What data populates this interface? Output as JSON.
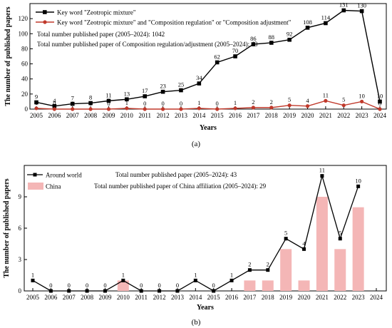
{
  "panels": [
    {
      "caption": "(a)",
      "chart_data": {
        "type": "line",
        "xlabel": "Years",
        "ylabel": "The number of published papers",
        "ylim": [
          0,
          140
        ],
        "yticks": [
          0,
          20,
          40,
          60,
          80,
          100,
          120
        ],
        "categories": [
          "2005",
          "2006",
          "2007",
          "2008",
          "2009",
          "2010",
          "2011",
          "2012",
          "2013",
          "2014",
          "2015",
          "2016",
          "2017",
          "2018",
          "2019",
          "2020",
          "2021",
          "2022",
          "2023",
          "2024"
        ],
        "series": [
          {
            "name": "Key word \"Zeotropic mixture\"",
            "color": "#000000",
            "marker": "square",
            "values": [
              9,
              4,
              7,
              8,
              11,
              13,
              17,
              23,
              25,
              34,
              62,
              70,
              86,
              88,
              92,
              108,
              114,
              131,
              130,
              10
            ]
          },
          {
            "name": "Key word \"Zeotropic mixture\" and \"Composition regulation\" or \"Composition adjustment\"",
            "color": "#c0392b",
            "marker": "circle",
            "values": [
              1,
              0,
              0,
              0,
              0,
              1,
              0,
              0,
              0,
              1,
              0,
              1,
              2,
              2,
              5,
              4,
              11,
              5,
              10,
              0
            ]
          }
        ],
        "annotations": [
          "Total number published paper (2005–2024): 1042",
          "Total number published paper of Composition regulation/adjustment (2005–2024): 43"
        ],
        "legend": "top-left",
        "grid": false
      }
    },
    {
      "caption": "(b)",
      "chart_data": {
        "type": "bar",
        "xlabel": "Years",
        "ylabel": "The number of published papers",
        "ylim": [
          0,
          12
        ],
        "yticks": [
          0,
          3,
          6,
          9
        ],
        "categories": [
          "2005",
          "2006",
          "2007",
          "2008",
          "2009",
          "2010",
          "2011",
          "2012",
          "2013",
          "2014",
          "2015",
          "2016",
          "2017",
          "2018",
          "2019",
          "2020",
          "2021",
          "2022",
          "2023",
          "2024"
        ],
        "series": [
          {
            "name": "Around world",
            "kind": "line",
            "color": "#000000",
            "values": [
              1,
              0,
              0,
              0,
              0,
              1,
              0,
              0,
              0,
              1,
              0,
              1,
              2,
              2,
              5,
              4,
              11,
              5,
              10,
              null
            ]
          },
          {
            "name": "China",
            "kind": "bar",
            "color": "#f4b6b6",
            "values": [
              0,
              0,
              0,
              0,
              0,
              1,
              0,
              0,
              0,
              0,
              0,
              0,
              1,
              1,
              4,
              1,
              9,
              4,
              8,
              0
            ]
          }
        ],
        "annotations": [
          "Total number published paper (2005–2024): 43",
          "Total number published paper of China affiliation (2005–2024): 29"
        ],
        "legend": "top-left",
        "grid": false
      }
    }
  ]
}
